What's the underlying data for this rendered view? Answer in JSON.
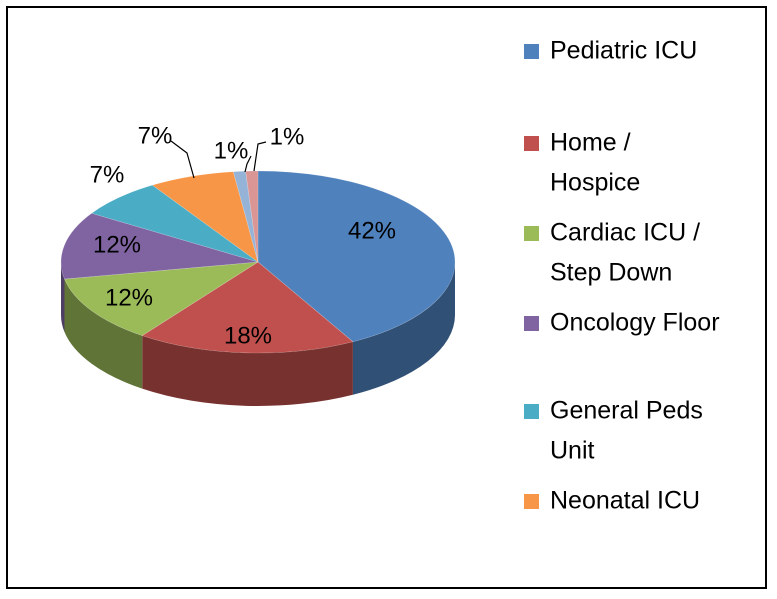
{
  "chart_data": {
    "type": "pie",
    "three_d": true,
    "legend_position": "right",
    "slices": [
      {
        "label": "Pediatric ICU",
        "legend_lines": [
          "Pediatric ICU"
        ],
        "value": 42,
        "display": "42%",
        "color": "#4F81BD"
      },
      {
        "label": "Home / Hospice",
        "legend_lines": [
          "Home /",
          "Hospice"
        ],
        "value": 18,
        "display": "18%",
        "color": "#C0504D"
      },
      {
        "label": "Cardiac ICU / Step Down",
        "legend_lines": [
          "Cardiac ICU /",
          "Step Down"
        ],
        "value": 12,
        "display": "12%",
        "color": "#9BBB59"
      },
      {
        "label": "Oncology Floor",
        "legend_lines": [
          "Oncology Floor"
        ],
        "value": 12,
        "display": "12%",
        "color": "#8064A2"
      },
      {
        "label": "General Peds Unit",
        "legend_lines": [
          "General Peds",
          "Unit"
        ],
        "value": 7,
        "display": "7%",
        "color": "#4BACC6"
      },
      {
        "label": "Neonatal ICU",
        "legend_lines": [
          "Neonatal ICU"
        ],
        "value": 7,
        "display": "7%",
        "color": "#F79646"
      },
      {
        "label": "",
        "legend_lines": [],
        "value": 1,
        "display": "1%",
        "color": "#95B3D7"
      },
      {
        "label": "",
        "legend_lines": [],
        "value": 1,
        "display": "1%",
        "color": "#D99694"
      }
    ]
  }
}
